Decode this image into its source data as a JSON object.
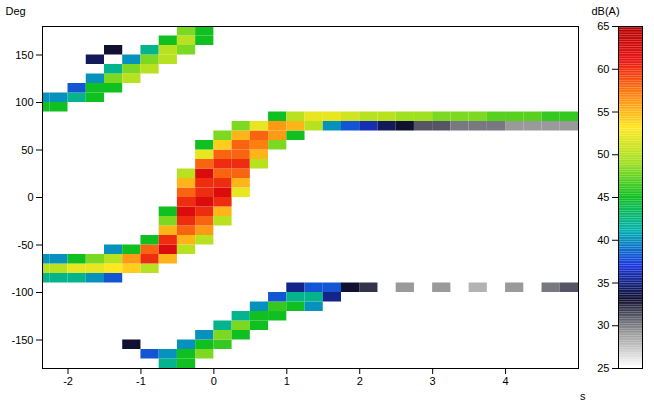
{
  "chart_data": {
    "type": "heatmap",
    "xlabel": "s",
    "ylabel": "Deg",
    "xlim": [
      -2.35,
      5.0
    ],
    "xticks": [
      -2,
      -1,
      0,
      1,
      2,
      3,
      4
    ],
    "ylim": [
      -180,
      180
    ],
    "yticks": [
      -150,
      -100,
      -50,
      0,
      50,
      100,
      150
    ],
    "grid": false,
    "cell_width": 0.25,
    "cell_height": 10,
    "cells": [
      [
        -2.5,
        -90,
        42
      ],
      [
        -2.5,
        -80,
        50
      ],
      [
        -2.5,
        -70,
        40
      ],
      [
        -2.5,
        90,
        45
      ],
      [
        -2.5,
        100,
        40
      ],
      [
        -2.25,
        -90,
        42
      ],
      [
        -2.25,
        -80,
        50
      ],
      [
        -2.25,
        -70,
        40
      ],
      [
        -2.25,
        90,
        45
      ],
      [
        -2.25,
        100,
        40
      ],
      [
        -2.0,
        -90,
        42
      ],
      [
        -2.0,
        -80,
        52
      ],
      [
        -2.0,
        -70,
        45
      ],
      [
        -2.0,
        100,
        42
      ],
      [
        -2.0,
        110,
        38
      ],
      [
        -1.75,
        -90,
        40
      ],
      [
        -1.75,
        -80,
        52
      ],
      [
        -1.75,
        -70,
        48
      ],
      [
        -1.75,
        100,
        45
      ],
      [
        -1.75,
        110,
        45
      ],
      [
        -1.75,
        120,
        40
      ],
      [
        -1.75,
        140,
        34
      ],
      [
        -1.5,
        -90,
        38
      ],
      [
        -1.5,
        -80,
        53
      ],
      [
        -1.5,
        -70,
        50
      ],
      [
        -1.5,
        -60,
        40
      ],
      [
        -1.5,
        110,
        45
      ],
      [
        -1.5,
        120,
        48
      ],
      [
        -1.5,
        130,
        42
      ],
      [
        -1.5,
        150,
        33
      ],
      [
        -1.25,
        -80,
        54
      ],
      [
        -1.25,
        -70,
        56
      ],
      [
        -1.25,
        -60,
        45
      ],
      [
        -1.25,
        120,
        50
      ],
      [
        -1.25,
        130,
        48
      ],
      [
        -1.25,
        140,
        40
      ],
      [
        -1.25,
        -160,
        33
      ],
      [
        -1.0,
        -80,
        50
      ],
      [
        -1.0,
        -70,
        60
      ],
      [
        -1.0,
        -60,
        58
      ],
      [
        -1.0,
        -50,
        45
      ],
      [
        -1.0,
        130,
        50
      ],
      [
        -1.0,
        140,
        48
      ],
      [
        -1.0,
        150,
        42
      ],
      [
        -1.0,
        -170,
        38
      ],
      [
        -0.75,
        -70,
        55
      ],
      [
        -0.75,
        -60,
        62
      ],
      [
        -0.75,
        -50,
        60
      ],
      [
        -0.75,
        -40,
        55
      ],
      [
        -0.75,
        -30,
        48
      ],
      [
        -0.75,
        -20,
        45
      ],
      [
        -0.75,
        140,
        50
      ],
      [
        -0.75,
        150,
        50
      ],
      [
        -0.75,
        160,
        45
      ],
      [
        -0.75,
        -180,
        42
      ],
      [
        -0.75,
        -170,
        40
      ],
      [
        -0.5,
        -60,
        50
      ],
      [
        -0.5,
        -50,
        55
      ],
      [
        -0.5,
        -40,
        58
      ],
      [
        -0.5,
        -30,
        60
      ],
      [
        -0.5,
        -20,
        62
      ],
      [
        -0.5,
        -10,
        60
      ],
      [
        -0.5,
        0,
        58
      ],
      [
        -0.5,
        10,
        55
      ],
      [
        -0.5,
        20,
        50
      ],
      [
        -0.5,
        150,
        48
      ],
      [
        -0.5,
        160,
        50
      ],
      [
        -0.5,
        170,
        48
      ],
      [
        -0.5,
        -180,
        45
      ],
      [
        -0.5,
        -170,
        45
      ],
      [
        -0.5,
        -160,
        40
      ],
      [
        -0.25,
        -50,
        50
      ],
      [
        -0.25,
        -40,
        56
      ],
      [
        -0.25,
        -30,
        58
      ],
      [
        -0.25,
        -20,
        60
      ],
      [
        -0.25,
        -10,
        62
      ],
      [
        -0.25,
        0,
        60
      ],
      [
        -0.25,
        10,
        60
      ],
      [
        -0.25,
        20,
        62
      ],
      [
        -0.25,
        30,
        58
      ],
      [
        -0.25,
        40,
        52
      ],
      [
        -0.25,
        50,
        45
      ],
      [
        -0.25,
        160,
        45
      ],
      [
        -0.25,
        170,
        45
      ],
      [
        -0.25,
        -170,
        48
      ],
      [
        -0.25,
        -160,
        45
      ],
      [
        -0.25,
        -150,
        40
      ],
      [
        0.0,
        -30,
        50
      ],
      [
        0.0,
        -20,
        55
      ],
      [
        0.0,
        -10,
        60
      ],
      [
        0.0,
        0,
        62
      ],
      [
        0.0,
        10,
        60
      ],
      [
        0.0,
        20,
        58
      ],
      [
        0.0,
        30,
        60
      ],
      [
        0.0,
        40,
        58
      ],
      [
        0.0,
        50,
        54
      ],
      [
        0.0,
        60,
        48
      ],
      [
        0.0,
        -160,
        46
      ],
      [
        0.0,
        -150,
        48
      ],
      [
        0.0,
        -140,
        42
      ],
      [
        0.25,
        0,
        52
      ],
      [
        0.25,
        10,
        55
      ],
      [
        0.25,
        20,
        58
      ],
      [
        0.25,
        30,
        60
      ],
      [
        0.25,
        40,
        58
      ],
      [
        0.25,
        50,
        58
      ],
      [
        0.25,
        60,
        55
      ],
      [
        0.25,
        70,
        48
      ],
      [
        0.25,
        -150,
        45
      ],
      [
        0.25,
        -140,
        48
      ],
      [
        0.25,
        -130,
        42
      ],
      [
        0.5,
        30,
        50
      ],
      [
        0.5,
        40,
        55
      ],
      [
        0.5,
        50,
        57
      ],
      [
        0.5,
        60,
        58
      ],
      [
        0.5,
        70,
        52
      ],
      [
        0.5,
        -140,
        45
      ],
      [
        0.5,
        -130,
        45
      ],
      [
        0.5,
        -120,
        40
      ],
      [
        0.75,
        50,
        48
      ],
      [
        0.75,
        60,
        56
      ],
      [
        0.75,
        70,
        56
      ],
      [
        0.75,
        80,
        45
      ],
      [
        0.75,
        -130,
        45
      ],
      [
        0.75,
        -120,
        46
      ],
      [
        0.75,
        -110,
        38
      ],
      [
        1.0,
        60,
        45
      ],
      [
        1.0,
        70,
        55
      ],
      [
        1.0,
        80,
        50
      ],
      [
        1.0,
        -120,
        45
      ],
      [
        1.0,
        -110,
        42
      ],
      [
        1.0,
        -100,
        35
      ],
      [
        1.25,
        70,
        50
      ],
      [
        1.25,
        80,
        52
      ],
      [
        1.25,
        -120,
        40
      ],
      [
        1.25,
        -110,
        42
      ],
      [
        1.25,
        -100,
        38
      ],
      [
        1.5,
        70,
        40
      ],
      [
        1.5,
        80,
        52
      ],
      [
        1.5,
        -110,
        35
      ],
      [
        1.5,
        -100,
        38
      ],
      [
        1.75,
        70,
        38
      ],
      [
        1.75,
        80,
        51
      ],
      [
        1.75,
        -100,
        33
      ],
      [
        2.0,
        70,
        36
      ],
      [
        2.0,
        80,
        50
      ],
      [
        2.0,
        -100,
        32
      ],
      [
        2.25,
        70,
        34
      ],
      [
        2.25,
        80,
        50
      ],
      [
        2.5,
        70,
        33
      ],
      [
        2.5,
        80,
        49
      ],
      [
        2.5,
        -100,
        29
      ],
      [
        2.75,
        70,
        31
      ],
      [
        2.75,
        80,
        49
      ],
      [
        3.0,
        70,
        31
      ],
      [
        3.0,
        80,
        48
      ],
      [
        3.0,
        -100,
        29
      ],
      [
        3.25,
        70,
        30
      ],
      [
        3.25,
        80,
        48
      ],
      [
        3.5,
        70,
        30
      ],
      [
        3.5,
        80,
        48
      ],
      [
        3.5,
        -100,
        28
      ],
      [
        3.75,
        70,
        30
      ],
      [
        3.75,
        80,
        47
      ],
      [
        4.0,
        70,
        29
      ],
      [
        4.0,
        80,
        47
      ],
      [
        4.0,
        -100,
        29
      ],
      [
        4.25,
        70,
        29
      ],
      [
        4.25,
        80,
        47
      ],
      [
        4.5,
        70,
        29
      ],
      [
        4.5,
        80,
        46
      ],
      [
        4.5,
        -100,
        30
      ],
      [
        4.75,
        70,
        29
      ],
      [
        4.75,
        80,
        46
      ],
      [
        4.75,
        -100,
        31
      ]
    ],
    "colorbar": {
      "label": "dB(A)",
      "range": [
        25,
        65
      ],
      "ticks": [
        25,
        30,
        35,
        40,
        45,
        50,
        55,
        60,
        65
      ]
    }
  }
}
